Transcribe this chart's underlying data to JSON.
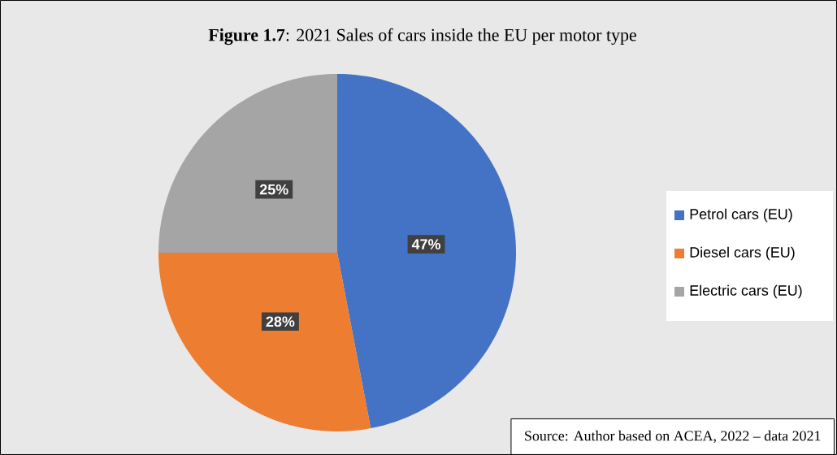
{
  "chart_data": {
    "type": "pie",
    "title": "**Figure 1.7**: 2021 Sales of cars inside the EU per motor type",
    "categories": [
      "Petrol cars (EU)",
      "Diesel cars (EU)",
      "Electric cars (EU)"
    ],
    "values": [
      47,
      28,
      25
    ],
    "colors": [
      "#4472c4",
      "#ed7d31",
      "#a5a5a5"
    ],
    "value_labels": [
      "47%",
      "28%",
      "25%"
    ],
    "legend": "right",
    "annotations": [
      "Source: Author based on ACEA, 2022 – data 2021"
    ]
  }
}
